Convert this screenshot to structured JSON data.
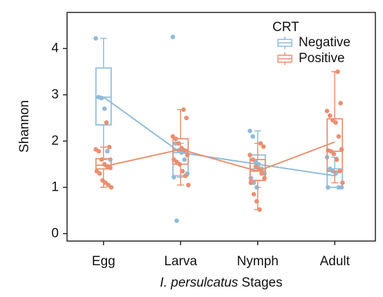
{
  "chart_data": {
    "type": "box",
    "xlabel_italic": "I. persulcatus",
    "xlabel_rest": "Stages",
    "ylabel": "Shannon",
    "categories": [
      "Egg",
      "Larva",
      "Nymph",
      "Adult"
    ],
    "ylim": [
      -0.16,
      4.78
    ],
    "yticks": [
      0,
      1,
      2,
      3,
      4
    ],
    "legend": {
      "title": "CRT",
      "corner": "upper right"
    },
    "series": [
      {
        "name": "Negative",
        "color": "#8fbcd8",
        "boxes": [
          {
            "whisker_low": 1.6,
            "q1": 2.35,
            "median": 2.95,
            "q3": 3.58,
            "whisker_high": 4.22
          },
          {
            "whisker_low": 1.22,
            "q1": 1.25,
            "median": 1.75,
            "q3": 1.82,
            "whisker_high": 1.95
          },
          {
            "whisker_low": 1.0,
            "q1": 1.15,
            "median": 1.4,
            "q3": 1.7,
            "whisker_high": 2.22
          },
          {
            "whisker_low": 1.0,
            "q1": 1.0,
            "median": 1.35,
            "q3": 1.4,
            "whisker_high": 1.65
          }
        ],
        "means": [
          2.95,
          1.75,
          1.5,
          1.25
        ],
        "points": [
          [
            4.22,
            2.95,
            2.93,
            2.7,
            1.78,
            1.6
          ],
          [
            4.25,
            1.95,
            1.8,
            1.75,
            1.6,
            1.3,
            1.22,
            0.28
          ],
          [
            2.22,
            2.1,
            1.55,
            1.5,
            1.4,
            1.3,
            1.2,
            1.1,
            1.0
          ],
          [
            1.65,
            1.4,
            1.35,
            1.3,
            1.0,
            1.0,
            1.0
          ]
        ]
      },
      {
        "name": "Positive",
        "color": "#ea8f6f",
        "boxes": [
          {
            "whisker_low": 1.0,
            "q1": 1.4,
            "median": 1.48,
            "q3": 1.62,
            "whisker_high": 1.87
          },
          {
            "whisker_low": 1.05,
            "q1": 1.5,
            "median": 1.8,
            "q3": 2.05,
            "whisker_high": 2.68
          },
          {
            "whisker_low": 0.52,
            "q1": 1.15,
            "median": 1.35,
            "q3": 1.6,
            "whisker_high": 1.95
          },
          {
            "whisker_low": 1.1,
            "q1": 1.35,
            "median": 1.78,
            "q3": 2.48,
            "whisker_high": 3.5
          }
        ],
        "means": [
          1.45,
          1.82,
          1.35,
          1.98
        ],
        "points": [
          [
            2.4,
            1.87,
            1.82,
            1.78,
            1.6,
            1.5,
            1.45,
            1.42,
            1.35,
            1.3,
            1.15,
            1.1,
            1.05,
            1.0
          ],
          [
            2.68,
            2.5,
            2.1,
            2.05,
            1.95,
            1.85,
            1.8,
            1.7,
            1.6,
            1.55,
            1.5,
            1.35,
            1.25,
            1.05
          ],
          [
            1.95,
            1.88,
            1.7,
            1.6,
            1.45,
            1.4,
            1.3,
            1.2,
            1.1,
            0.85,
            0.7,
            0.52
          ],
          [
            3.5,
            2.82,
            2.65,
            2.55,
            2.45,
            2.4,
            2.1,
            1.82,
            1.8,
            1.78,
            1.72,
            1.6,
            1.35,
            1.1
          ]
        ]
      }
    ]
  }
}
